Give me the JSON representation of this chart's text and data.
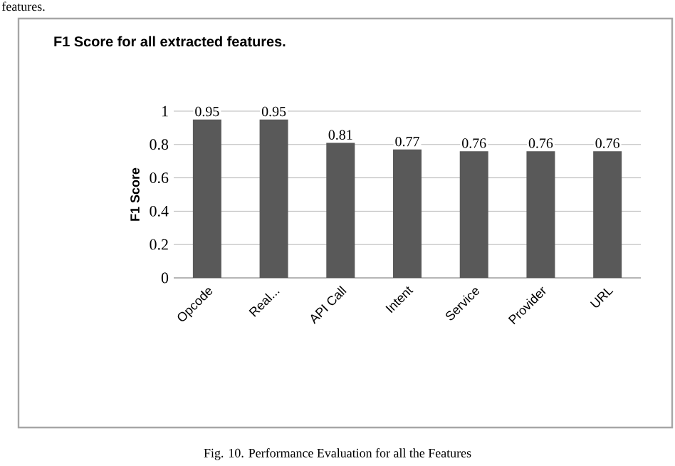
{
  "chart_data": {
    "type": "bar",
    "title": "F1 Score for all extracted features.",
    "ylabel": "F1 Score",
    "categories": [
      "Opcode",
      "Real...",
      "API Call",
      "Intent",
      "Service",
      "Provider",
      "URL"
    ],
    "values": [
      0.95,
      0.95,
      0.81,
      0.77,
      0.76,
      0.76,
      0.76
    ],
    "color": "#595959",
    "ylim": [
      0,
      1
    ],
    "yticks": [
      0,
      0.2,
      0.4,
      0.6,
      0.8,
      1
    ],
    "grid": "y",
    "data_labels": true,
    "annotations": [
      "features.",
      "Fig. 10. Performance Evaluation for all the Features"
    ]
  }
}
